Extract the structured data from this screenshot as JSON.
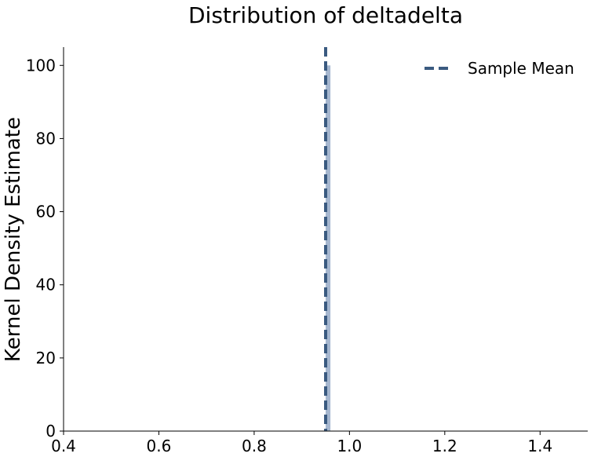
{
  "chart_data": {
    "type": "bar",
    "title": "Distribution of deltadelta",
    "xlabel": "",
    "ylabel": "Kernel Density Estimate",
    "xlim": [
      0.4,
      1.5
    ],
    "ylim": [
      0,
      105
    ],
    "x_ticks": [
      "0.4",
      "0.6",
      "0.8",
      "1.0",
      "1.2",
      "1.4"
    ],
    "y_ticks": [
      "0",
      "20",
      "40",
      "60",
      "80",
      "100"
    ],
    "bins": [
      {
        "x0": 0.95,
        "x1": 0.96,
        "value": 100
      }
    ],
    "sample_mean": 0.95,
    "legend": {
      "label": "Sample Mean",
      "position": "top-right"
    },
    "grid": false,
    "colors": {
      "bar": "#a6b7cf",
      "mean_line": "#3a5a80"
    }
  }
}
